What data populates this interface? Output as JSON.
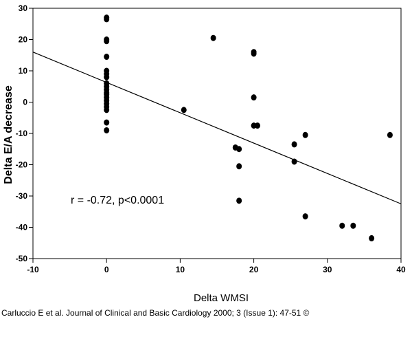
{
  "chart_data": {
    "type": "scatter",
    "xlabel": "Delta WMSI",
    "ylabel": "Delta E/A decrease",
    "xlim": [
      -10,
      40
    ],
    "ylim": [
      -50,
      30
    ],
    "xticks": [
      -10,
      0,
      10,
      20,
      30,
      40
    ],
    "yticks": [
      30,
      20,
      10,
      0,
      -10,
      -20,
      -30,
      -40,
      -50
    ],
    "grid": false,
    "annotation": "r = -0.72, p<0.0001",
    "regression_line": {
      "x": [
        -10,
        40
      ],
      "y": [
        16,
        -32.5
      ]
    },
    "points": [
      [
        0,
        27
      ],
      [
        0,
        26.5
      ],
      [
        0,
        20
      ],
      [
        0,
        19.5
      ],
      [
        0,
        14.5
      ],
      [
        0,
        10
      ],
      [
        0,
        9
      ],
      [
        0,
        8
      ],
      [
        0,
        6
      ],
      [
        0,
        5
      ],
      [
        0,
        4
      ],
      [
        0,
        3
      ],
      [
        0,
        2.5
      ],
      [
        0,
        1.5
      ],
      [
        0,
        0.5
      ],
      [
        0,
        -0.5
      ],
      [
        0,
        -1.5
      ],
      [
        0,
        -2.5
      ],
      [
        0,
        -6.5
      ],
      [
        0,
        -9
      ],
      [
        10.5,
        -2.5
      ],
      [
        14.5,
        20.5
      ],
      [
        17.5,
        -14.5
      ],
      [
        18,
        -15
      ],
      [
        18,
        -20.5
      ],
      [
        18,
        -31.5
      ],
      [
        20,
        16
      ],
      [
        20,
        15.5
      ],
      [
        20,
        1.5
      ],
      [
        20,
        -7.5
      ],
      [
        20.5,
        -7.5
      ],
      [
        25.5,
        -13.5
      ],
      [
        25.5,
        -19
      ],
      [
        27,
        -10.5
      ],
      [
        27,
        -36.5
      ],
      [
        32,
        -39.5
      ],
      [
        33.5,
        -39.5
      ],
      [
        36,
        -43.5
      ],
      [
        38.5,
        -10.5
      ]
    ]
  },
  "caption": "Carluccio E et al. Journal of Clinical and Basic Cardiology 2000; 3 (Issue 1): 47-51 ©"
}
